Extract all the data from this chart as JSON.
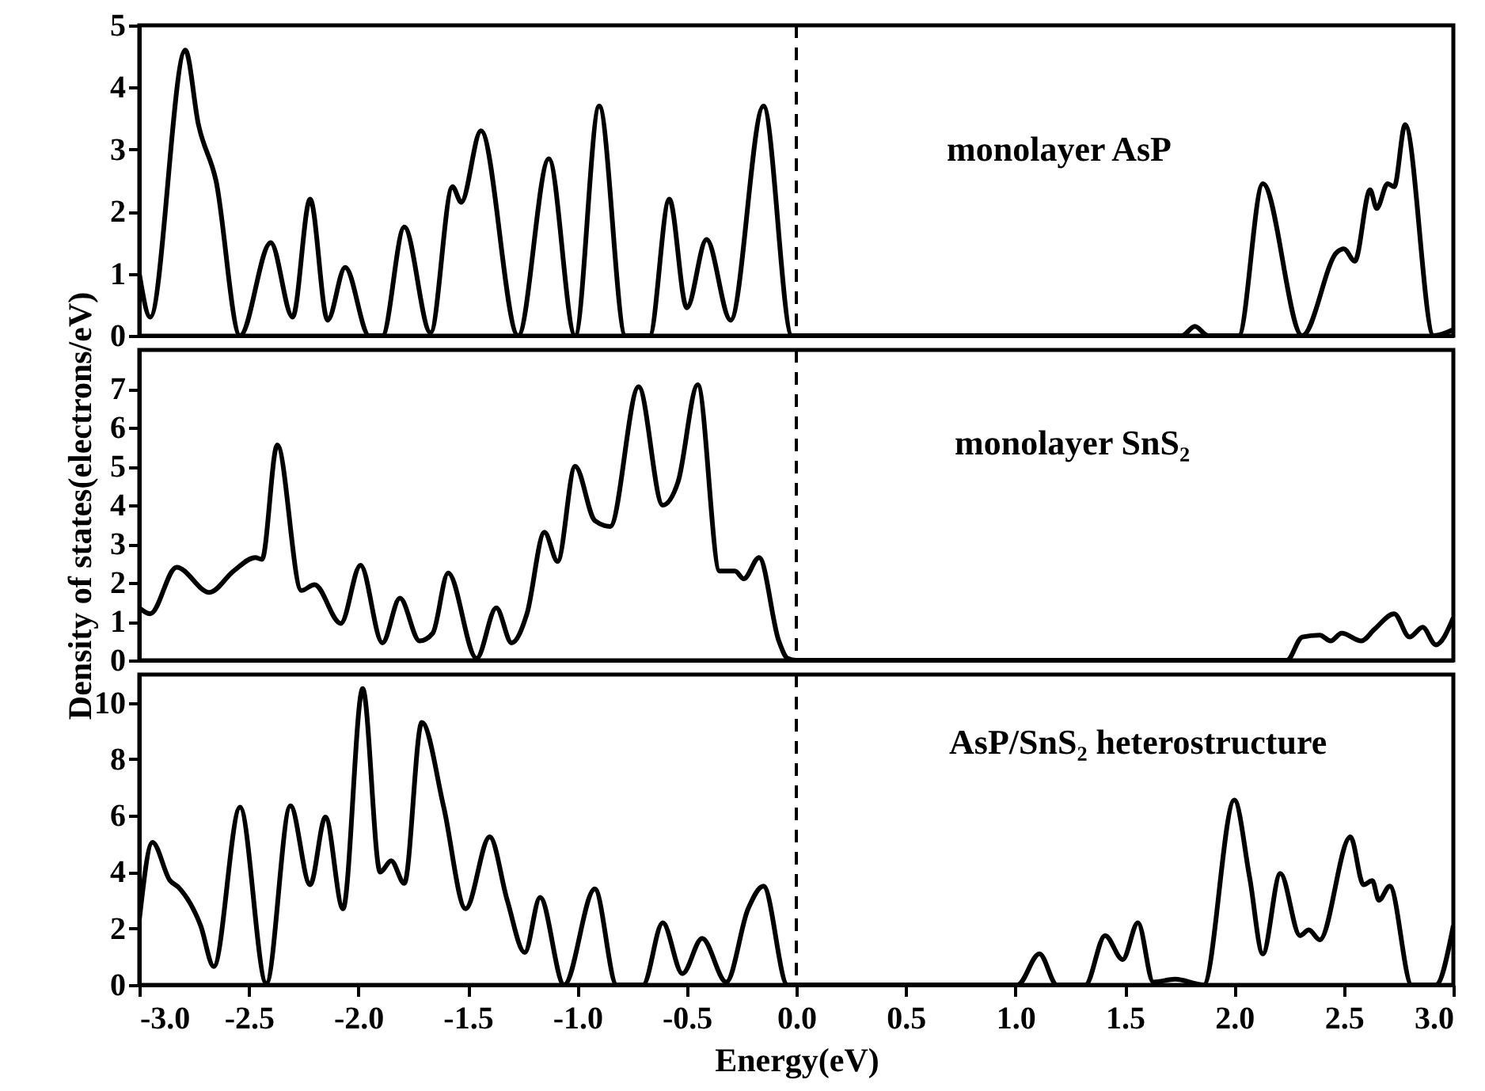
{
  "chart_data": [
    {
      "type": "line",
      "tick_labels": "y",
      "xlim": [
        -3,
        3
      ],
      "ylim": [
        0,
        5
      ],
      "yticks": [
        0,
        1,
        2,
        3,
        4,
        5
      ],
      "annotations": [
        "monolayer AsP"
      ],
      "ref_lines": [
        {
          "axis": "x",
          "value": 0,
          "line_style": "dashed"
        }
      ],
      "series": [
        {
          "color": "#000000",
          "x": [
            -3.0,
            -2.95,
            -2.79,
            -2.73,
            -2.65,
            -2.54,
            -2.4,
            -2.3,
            -2.22,
            -2.14,
            -2.06,
            -1.95,
            -1.89,
            -1.79,
            -1.67,
            -1.57,
            -1.53,
            -1.44,
            -1.27,
            -1.13,
            -1.01,
            -0.9,
            -0.78,
            -0.67,
            -0.58,
            -0.5,
            -0.41,
            -0.3,
            -0.15,
            -0.02,
            1.76,
            1.82,
            1.88,
            2.02,
            2.13,
            2.31,
            2.47,
            2.5,
            2.55,
            2.62,
            2.65,
            2.7,
            2.73,
            2.78,
            2.91,
            3.0
          ],
          "values": [
            1.0,
            0.3,
            4.6,
            3.4,
            2.5,
            0,
            1.5,
            0.3,
            2.2,
            0.25,
            1.1,
            0,
            0,
            1.75,
            0.05,
            2.4,
            2.15,
            3.3,
            0,
            2.85,
            0,
            3.7,
            0,
            0,
            2.2,
            0.45,
            1.55,
            0.25,
            3.7,
            0,
            0,
            0.15,
            0,
            0,
            2.45,
            0,
            1.35,
            1.4,
            1.2,
            2.35,
            2.05,
            2.45,
            2.4,
            3.4,
            0,
            0.1
          ]
        }
      ]
    },
    {
      "type": "line",
      "tick_labels": "y",
      "ylabel": "Density of states(electrons/eV)",
      "xlim": [
        -3,
        3
      ],
      "ylim": [
        0,
        8
      ],
      "yticks": [
        0,
        1,
        2,
        3,
        4,
        5,
        6,
        7
      ],
      "annotations": [
        "monolayer SnS₂"
      ],
      "ref_lines": [
        {
          "axis": "x",
          "value": 0,
          "line_style": "dashed"
        }
      ],
      "series": [
        {
          "color": "#000000",
          "x": [
            -3.0,
            -2.95,
            -2.83,
            -2.68,
            -2.57,
            -2.47,
            -2.44,
            -2.37,
            -2.26,
            -2.2,
            -2.08,
            -1.99,
            -1.89,
            -1.81,
            -1.72,
            -1.66,
            -1.59,
            -1.46,
            -1.37,
            -1.3,
            -1.23,
            -1.15,
            -1.09,
            -1.01,
            -0.92,
            -0.85,
            -0.72,
            -0.61,
            -0.54,
            -0.45,
            -0.35,
            -0.28,
            -0.24,
            -0.17,
            -0.08,
            -0.04,
            0.0,
            2.24,
            2.31,
            2.39,
            2.44,
            2.49,
            2.58,
            2.64,
            2.73,
            2.8,
            2.86,
            2.92,
            3.0
          ],
          "values": [
            1.35,
            1.2,
            2.4,
            1.75,
            2.3,
            2.65,
            2.6,
            5.55,
            1.8,
            1.95,
            0.95,
            2.45,
            0.45,
            1.6,
            0.5,
            0.7,
            2.25,
            0.05,
            1.35,
            0.45,
            1.2,
            3.3,
            2.55,
            5.0,
            3.6,
            3.45,
            7.05,
            4.0,
            4.6,
            7.1,
            2.3,
            2.3,
            2.1,
            2.65,
            0.5,
            0.05,
            0,
            0,
            0.6,
            0.65,
            0.5,
            0.7,
            0.5,
            0.8,
            1.2,
            0.6,
            0.85,
            0.4,
            1.1
          ]
        }
      ]
    },
    {
      "type": "line",
      "xlabel": "Energy(eV)",
      "xlim": [
        -3,
        3
      ],
      "xticks": [
        {
          "value": -3,
          "label": "-3.0"
        },
        {
          "value": -2.5,
          "label": "-2.5"
        },
        {
          "value": -2,
          "label": "-2.0"
        },
        {
          "value": -1.5,
          "label": "-1.5"
        },
        {
          "value": -1,
          "label": "-1.0"
        },
        {
          "value": -0.5,
          "label": "-0.5"
        },
        {
          "value": 0,
          "label": "0.0"
        },
        {
          "value": 0.5,
          "label": "0.5"
        },
        {
          "value": 1,
          "label": "1.0"
        },
        {
          "value": 1.5,
          "label": "1.5"
        },
        {
          "value": 2,
          "label": "2.0"
        },
        {
          "value": 2.5,
          "label": "2.5"
        },
        {
          "value": 3,
          "label": "3.0"
        }
      ],
      "ylim": [
        0,
        11
      ],
      "yticks": [
        0,
        2,
        4,
        6,
        8,
        10
      ],
      "annotations": [
        "AsP/SnS₂ heterostructure"
      ],
      "ref_lines": [
        {
          "axis": "x",
          "value": 0,
          "line_style": "dashed"
        }
      ],
      "series": [
        {
          "color": "#000000",
          "x": [
            -3.0,
            -2.94,
            -2.86,
            -2.82,
            -2.72,
            -2.66,
            -2.54,
            -2.42,
            -2.31,
            -2.22,
            -2.15,
            -2.07,
            -1.98,
            -1.9,
            -1.85,
            -1.79,
            -1.71,
            -1.61,
            -1.51,
            -1.4,
            -1.32,
            -1.24,
            -1.17,
            -1.06,
            -0.92,
            -0.82,
            -0.7,
            -0.61,
            -0.52,
            -0.43,
            -0.32,
            -0.22,
            -0.15,
            -0.04,
            1.01,
            1.11,
            1.19,
            1.32,
            1.41,
            1.49,
            1.56,
            1.63,
            1.73,
            1.86,
            2.0,
            2.07,
            2.13,
            2.21,
            2.3,
            2.34,
            2.39,
            2.53,
            2.59,
            2.63,
            2.66,
            2.71,
            2.81,
            2.92,
            3.0
          ],
          "values": [
            2.3,
            5.05,
            3.7,
            3.45,
            2.1,
            0.65,
            6.3,
            0.05,
            6.35,
            3.55,
            5.95,
            2.7,
            10.5,
            4.0,
            4.4,
            3.6,
            9.3,
            6.3,
            2.7,
            5.25,
            3.0,
            1.15,
            3.1,
            0,
            3.4,
            0,
            0,
            2.2,
            0.4,
            1.65,
            0.1,
            2.7,
            3.5,
            0,
            0,
            1.1,
            0,
            0,
            1.75,
            0.9,
            2.2,
            0.1,
            0.2,
            0,
            6.55,
            3.8,
            1.1,
            3.95,
            1.75,
            1.95,
            1.6,
            5.25,
            3.55,
            3.7,
            3.0,
            3.5,
            0,
            0,
            2.1
          ]
        }
      ]
    }
  ]
}
